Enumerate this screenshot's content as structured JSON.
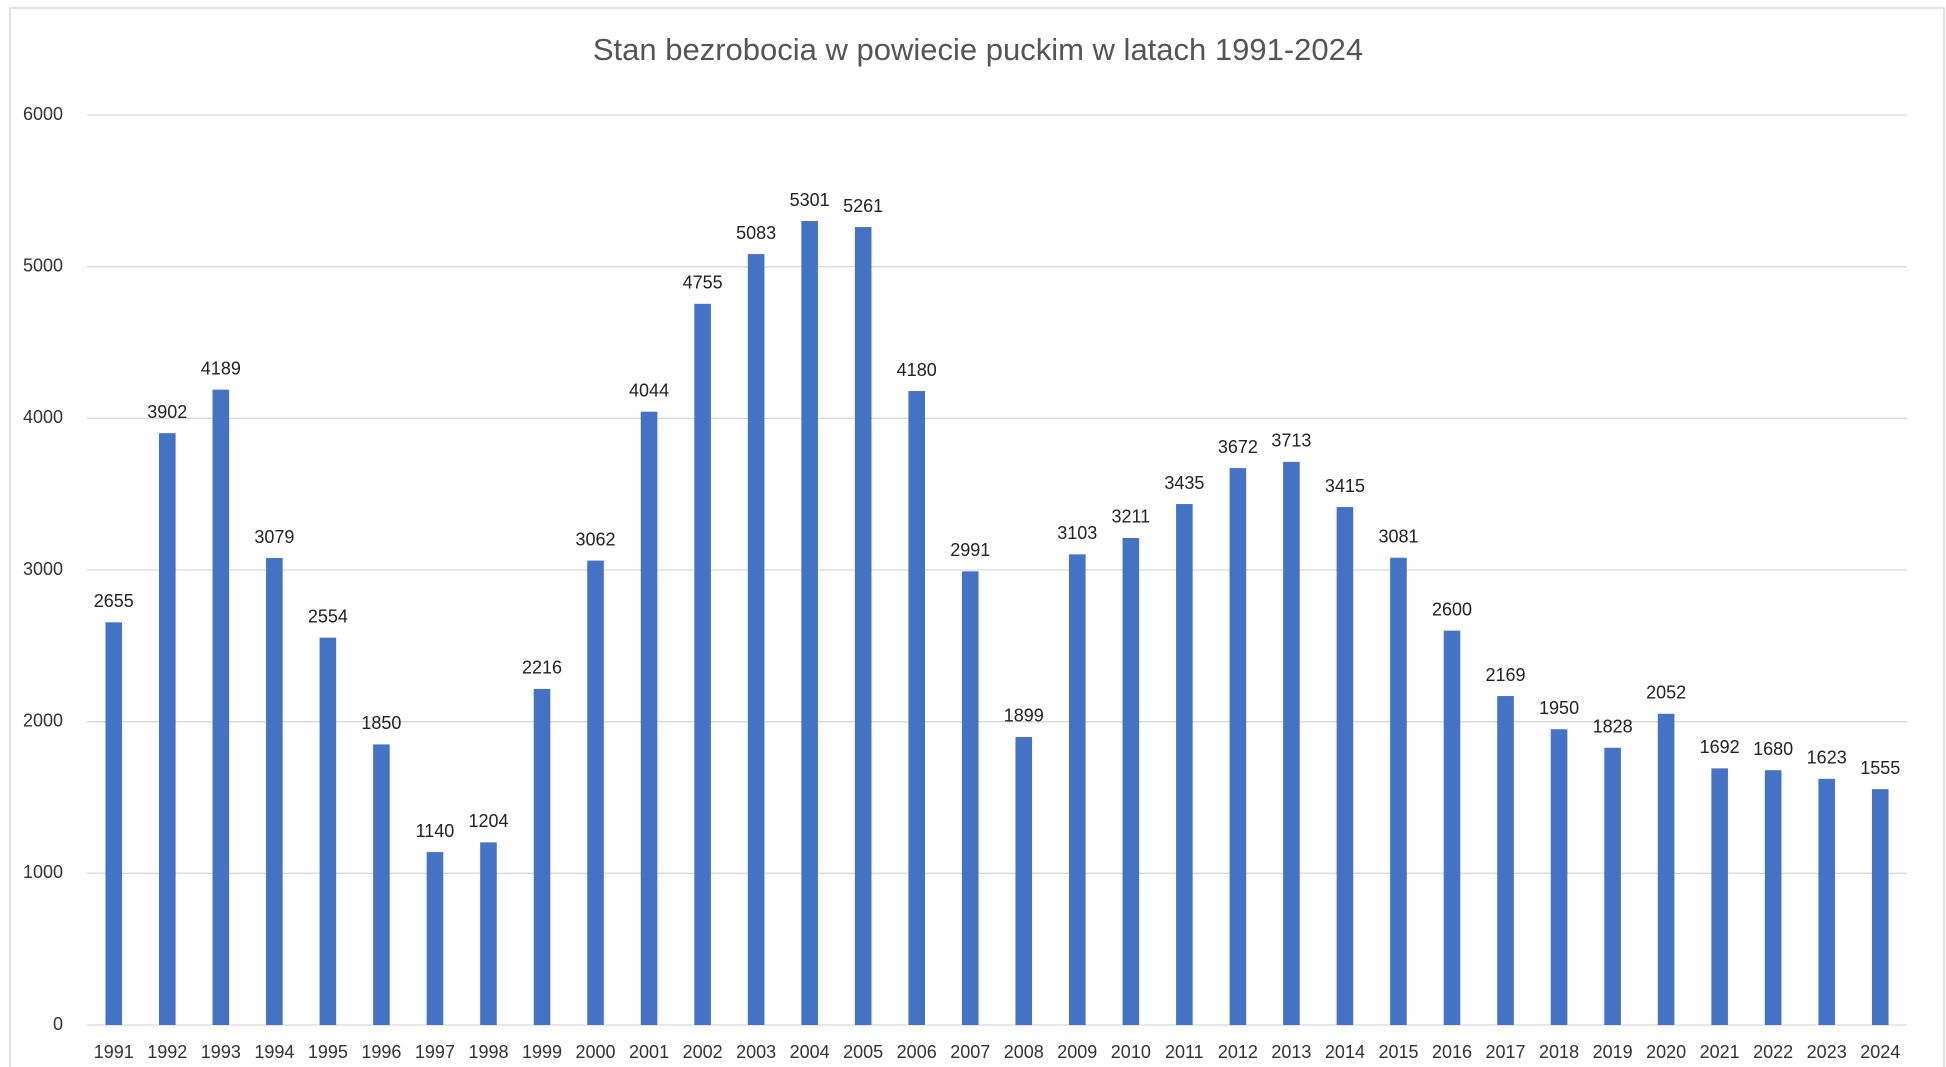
{
  "chart_data": {
    "type": "bar",
    "title": "Stan bezrobocia w powiecie puckim w latach 1991-2024",
    "categories": [
      "1991",
      "1992",
      "1993",
      "1994",
      "1995",
      "1996",
      "1997",
      "1998",
      "1999",
      "2000",
      "2001",
      "2002",
      "2003",
      "2004",
      "2005",
      "2006",
      "2007",
      "2008",
      "2009",
      "2010",
      "2011",
      "2012",
      "2013",
      "2014",
      "2015",
      "2016",
      "2017",
      "2018",
      "2019",
      "2020",
      "2021",
      "2022",
      "2023",
      "2024"
    ],
    "values": [
      2655,
      3902,
      4189,
      3079,
      2554,
      1850,
      1140,
      1204,
      2216,
      3062,
      4044,
      4755,
      5083,
      5301,
      5261,
      4180,
      2991,
      1899,
      3103,
      3211,
      3435,
      3672,
      3713,
      3415,
      3081,
      2600,
      2169,
      1950,
      1828,
      2052,
      1692,
      1680,
      1623,
      1555
    ],
    "color": "#4472c4",
    "ylim": [
      0,
      6000
    ],
    "yticks": [
      0,
      1000,
      2000,
      3000,
      4000,
      5000,
      6000
    ],
    "grid": true
  }
}
